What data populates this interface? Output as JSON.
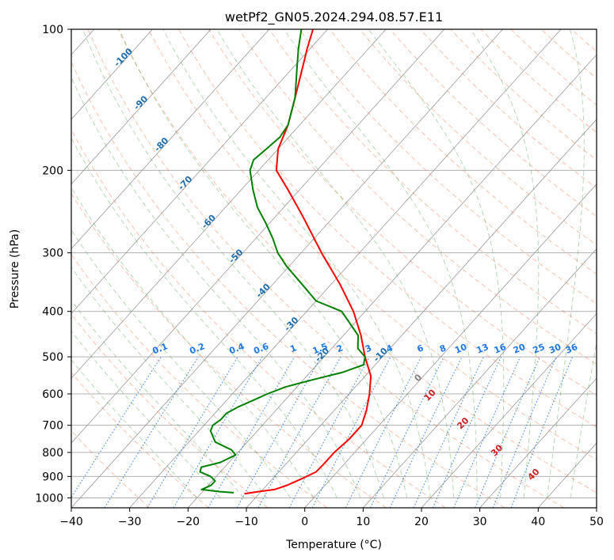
{
  "chart_data": {
    "type": "line",
    "subtype": "skew-t log-p diagram",
    "title": "wetPf2_GN05.2024.294.08.57.E11",
    "xlabel": "Temperature (°C)",
    "ylabel": "Pressure (hPa)",
    "xlim": [
      -40,
      50
    ],
    "ylim": [
      1050,
      100
    ],
    "y_scale": "log",
    "grid": true,
    "x_ticks": [
      -40,
      -30,
      -20,
      -10,
      0,
      10,
      20,
      30,
      40,
      50
    ],
    "x_tick_labels": [
      "−40",
      "−30",
      "−20",
      "−10",
      "0",
      "10",
      "20",
      "30",
      "40",
      "50"
    ],
    "y_ticks": [
      1000,
      900,
      800,
      700,
      600,
      500,
      400,
      300,
      200,
      100
    ],
    "y_tick_labels": [
      "1000",
      "900",
      "800",
      "700",
      "600",
      "500",
      "400",
      "300",
      "200",
      "100"
    ],
    "colors": {
      "temperature": "#ff0000",
      "dewpoint": "#008000",
      "isotherm": "#808080",
      "dry_adiabat": "#ff6633",
      "moist_adiabat": "#339933",
      "mixing_ratio": "#1f77e4",
      "isotherm_label": "#1f6fb0",
      "moist_label": "#cc2222"
    },
    "series": [
      {
        "role": "temperature",
        "color": "#ff0000",
        "points": [
          {
            "p": 980,
            "t": -12.5
          },
          {
            "p": 970,
            "t": -10.5
          },
          {
            "p": 960,
            "t": -8.0
          },
          {
            "p": 940,
            "t": -6.5
          },
          {
            "p": 910,
            "t": -5.0
          },
          {
            "p": 880,
            "t": -3.6
          },
          {
            "p": 850,
            "t": -3.5
          },
          {
            "p": 800,
            "t": -3.5
          },
          {
            "p": 750,
            "t": -3.0
          },
          {
            "p": 700,
            "t": -3.0
          },
          {
            "p": 650,
            "t": -4.5
          },
          {
            "p": 600,
            "t": -6.5
          },
          {
            "p": 550,
            "t": -9.0
          },
          {
            "p": 500,
            "t": -13.0
          },
          {
            "p": 450,
            "t": -17.0
          },
          {
            "p": 400,
            "t": -22.0
          },
          {
            "p": 350,
            "t": -28.5
          },
          {
            "p": 300,
            "t": -36.5
          },
          {
            "p": 250,
            "t": -45.5
          },
          {
            "p": 220,
            "t": -52.0
          },
          {
            "p": 200,
            "t": -57.0
          },
          {
            "p": 180,
            "t": -60.0
          },
          {
            "p": 160,
            "t": -62.0
          },
          {
            "p": 140,
            "t": -65.0
          },
          {
            "p": 120,
            "t": -68.5
          },
          {
            "p": 110,
            "t": -70.5
          },
          {
            "p": 100,
            "t": -72.5
          }
        ]
      },
      {
        "role": "dewpoint",
        "color": "#008000",
        "points": [
          {
            "p": 975,
            "t": -14.5
          },
          {
            "p": 970,
            "t": -17.0
          },
          {
            "p": 960,
            "t": -20.5
          },
          {
            "p": 940,
            "t": -19.5
          },
          {
            "p": 920,
            "t": -19.5
          },
          {
            "p": 900,
            "t": -21.0
          },
          {
            "p": 880,
            "t": -23.5
          },
          {
            "p": 860,
            "t": -24.0
          },
          {
            "p": 840,
            "t": -21.5
          },
          {
            "p": 810,
            "t": -20.0
          },
          {
            "p": 790,
            "t": -21.5
          },
          {
            "p": 760,
            "t": -25.5
          },
          {
            "p": 720,
            "t": -28.0
          },
          {
            "p": 700,
            "t": -28.5
          },
          {
            "p": 680,
            "t": -28.0
          },
          {
            "p": 660,
            "t": -28.0
          },
          {
            "p": 640,
            "t": -27.0
          },
          {
            "p": 620,
            "t": -25.5
          },
          {
            "p": 600,
            "t": -24.0
          },
          {
            "p": 580,
            "t": -22.0
          },
          {
            "p": 560,
            "t": -18.5
          },
          {
            "p": 540,
            "t": -14.5
          },
          {
            "p": 520,
            "t": -12.0
          },
          {
            "p": 500,
            "t": -13.0
          },
          {
            "p": 480,
            "t": -15.5
          },
          {
            "p": 450,
            "t": -17.5
          },
          {
            "p": 400,
            "t": -24.0
          },
          {
            "p": 380,
            "t": -30.0
          },
          {
            "p": 350,
            "t": -35.0
          },
          {
            "p": 320,
            "t": -40.5
          },
          {
            "p": 300,
            "t": -44.0
          },
          {
            "p": 280,
            "t": -47.0
          },
          {
            "p": 260,
            "t": -50.5
          },
          {
            "p": 240,
            "t": -54.5
          },
          {
            "p": 220,
            "t": -58.0
          },
          {
            "p": 200,
            "t": -61.5
          },
          {
            "p": 190,
            "t": -62.5
          },
          {
            "p": 180,
            "t": -62.0
          },
          {
            "p": 170,
            "t": -61.5
          },
          {
            "p": 160,
            "t": -62.0
          },
          {
            "p": 140,
            "t": -65.0
          },
          {
            "p": 120,
            "t": -69.5
          },
          {
            "p": 110,
            "t": -72.0
          },
          {
            "p": 100,
            "t": -74.5
          }
        ]
      }
    ],
    "isotherm_labels": [
      "-100",
      "-90",
      "-80",
      "-70",
      "-60",
      "-50",
      "-40",
      "-30",
      "-20",
      "-10",
      "0"
    ],
    "mixing_ratio_labels": [
      "0.1",
      "0.2",
      "0.4",
      "0.6",
      "1",
      "1.5",
      "2",
      "3",
      "4",
      "6",
      "8",
      "10",
      "13",
      "16",
      "20",
      "25",
      "30",
      "36"
    ],
    "moist_adiabat_labels": [
      "10",
      "20",
      "30",
      "40"
    ]
  }
}
